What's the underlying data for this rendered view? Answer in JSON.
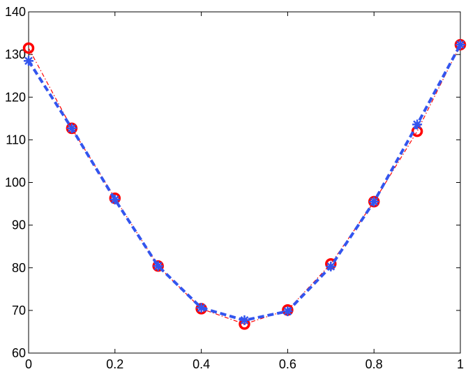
{
  "chart_data": {
    "type": "line",
    "x": [
      0,
      0.1,
      0.2,
      0.3,
      0.4,
      0.5,
      0.6,
      0.7,
      0.8,
      0.9,
      1
    ],
    "series": [
      {
        "color": "#ff0000",
        "marker": "circle",
        "linestyle": "dashdot",
        "values": [
          131.5,
          112.7,
          96.3,
          80.4,
          70.4,
          66.8,
          70.1,
          80.9,
          95.5,
          112.0,
          132.3
        ]
      },
      {
        "color": "#3355ee",
        "marker": "star",
        "linestyle": "dashed",
        "values": [
          128.5,
          112.7,
          96.0,
          80.4,
          70.6,
          67.7,
          69.8,
          80.3,
          95.5,
          113.6,
          132.3
        ]
      }
    ],
    "xlim": [
      0,
      1
    ],
    "xticks": [
      0,
      0.2,
      0.4,
      0.6,
      0.8,
      1
    ],
    "ylim": [
      60,
      140
    ],
    "yticks": [
      60,
      70,
      80,
      90,
      100,
      110,
      120,
      130,
      140
    ],
    "grid": false
  }
}
